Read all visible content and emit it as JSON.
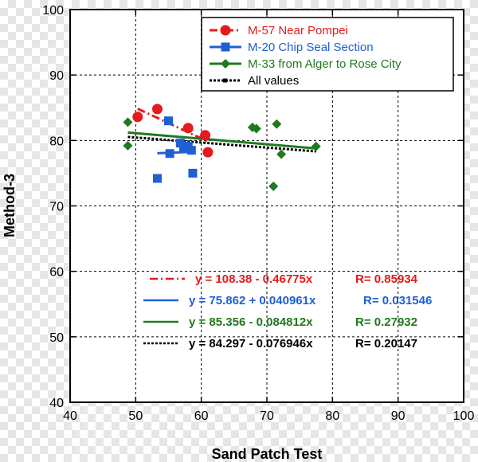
{
  "chart_data": {
    "type": "scatter",
    "title": "",
    "xlabel": "Sand Patch Test",
    "ylabel": "Method-3",
    "xlim": [
      40,
      100
    ],
    "ylim": [
      40,
      100
    ],
    "xticks": [
      "40",
      "50",
      "60",
      "70",
      "80",
      "90",
      "100"
    ],
    "yticks": [
      "40",
      "50",
      "60",
      "70",
      "80",
      "90",
      "100"
    ],
    "grid": true,
    "legend_position": "top-right",
    "series": [
      {
        "name": "M-57 Near Pompei",
        "color": "#e41a1c",
        "marker": "circle",
        "line_style": "dash-dot",
        "points": [
          [
            50.3,
            83.6
          ],
          [
            53.3,
            84.8
          ],
          [
            58.0,
            81.9
          ],
          [
            60.6,
            80.8
          ],
          [
            61.0,
            78.2
          ]
        ],
        "fit": {
          "slope": -0.46775,
          "intercept": 108.38,
          "x_range": [
            50.3,
            61.0
          ]
        },
        "equation": "y = 108.38 - 0.46775x",
        "r_label": "R= 0.85934"
      },
      {
        "name": "M-20 Chip Seal Section",
        "color": "#1f5fd6",
        "marker": "square",
        "line_style": "solid",
        "points": [
          [
            53.3,
            74.2
          ],
          [
            55.0,
            83.0
          ],
          [
            55.2,
            78.0
          ],
          [
            56.8,
            79.6
          ],
          [
            57.3,
            78.8
          ],
          [
            58.0,
            79.1
          ],
          [
            58.5,
            78.5
          ],
          [
            58.7,
            75.0
          ]
        ],
        "fit": {
          "slope": 0.040961,
          "intercept": 75.862,
          "x_range": [
            53.3,
            58.7
          ]
        },
        "equation": "y = 75.862 + 0.040961x",
        "r_label": "R= 0.031546"
      },
      {
        "name": "M-33 from Alger to Rose City",
        "color": "#1f7a1f",
        "marker": "diamond",
        "line_style": "solid",
        "points": [
          [
            48.8,
            82.8
          ],
          [
            48.8,
            79.2
          ],
          [
            67.8,
            82.0
          ],
          [
            68.4,
            81.8
          ],
          [
            71.0,
            73.0
          ],
          [
            71.5,
            82.5
          ],
          [
            72.2,
            77.9
          ],
          [
            77.5,
            79.1
          ]
        ],
        "fit": {
          "slope": -0.084812,
          "intercept": 85.356,
          "x_range": [
            48.8,
            77.5
          ]
        },
        "equation": "y = 85.356 - 0.084812x",
        "r_label": "R= 0.27932"
      },
      {
        "name": "All values",
        "color": "#000000",
        "marker": "none",
        "line_style": "dotted",
        "points": [],
        "fit": {
          "slope": -0.076946,
          "intercept": 84.297,
          "x_range": [
            48.8,
            77.5
          ]
        },
        "equation": "y = 84.297 - 0.076946x",
        "r_label": "R= 0.20147"
      }
    ]
  }
}
